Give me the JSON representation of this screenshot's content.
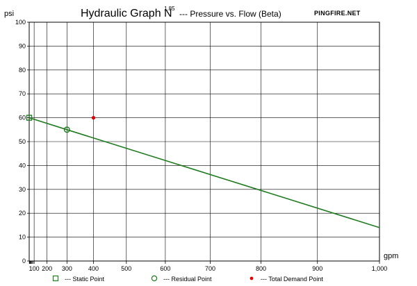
{
  "chart_data": {
    "type": "line",
    "title": "Hydraulic Graph N",
    "title_superscript": "1.85",
    "subtitle": "--- Pressure vs. Flow (Beta)",
    "brand": "PINGFIRE.NET",
    "ylabel": "psi",
    "xlabel": "gpm",
    "xlim": [
      0,
      1000
    ],
    "ylim": [
      0,
      100
    ],
    "x_scale": "N^1.85",
    "grid": true,
    "y_ticks": [
      0,
      10,
      20,
      30,
      40,
      50,
      60,
      70,
      80,
      90,
      100
    ],
    "x_ticks": [
      {
        "value": 100,
        "label": "100"
      },
      {
        "value": 200,
        "label": "200"
      },
      {
        "value": 300,
        "label": "300"
      },
      {
        "value": 400,
        "label": "400"
      },
      {
        "value": 500,
        "label": "500"
      },
      {
        "value": 600,
        "label": "600"
      },
      {
        "value": 700,
        "label": "700"
      },
      {
        "value": 800,
        "label": "800"
      },
      {
        "value": 900,
        "label": "900"
      },
      {
        "value": 1000,
        "label": "1,000"
      }
    ],
    "supply_curve": {
      "points": [
        [
          0,
          60
        ],
        [
          300,
          55
        ],
        [
          1000,
          14
        ]
      ],
      "color": "#1e7b1e"
    },
    "static_point": {
      "x": 0,
      "y": 60,
      "color": "#1e7b1e"
    },
    "residual_point": {
      "x": 300,
      "y": 55,
      "color": "#1e7b1e"
    },
    "demand_point": {
      "x": 400,
      "y": 60,
      "color": "#e00000"
    },
    "legend": [
      {
        "marker": "square",
        "label": "--- Static Point",
        "color": "#1e7b1e"
      },
      {
        "marker": "circle",
        "label": "--- Residual Point",
        "color": "#1e7b1e"
      },
      {
        "marker": "dot",
        "label": "--- Total Demand Point",
        "color": "#e00000"
      }
    ]
  }
}
